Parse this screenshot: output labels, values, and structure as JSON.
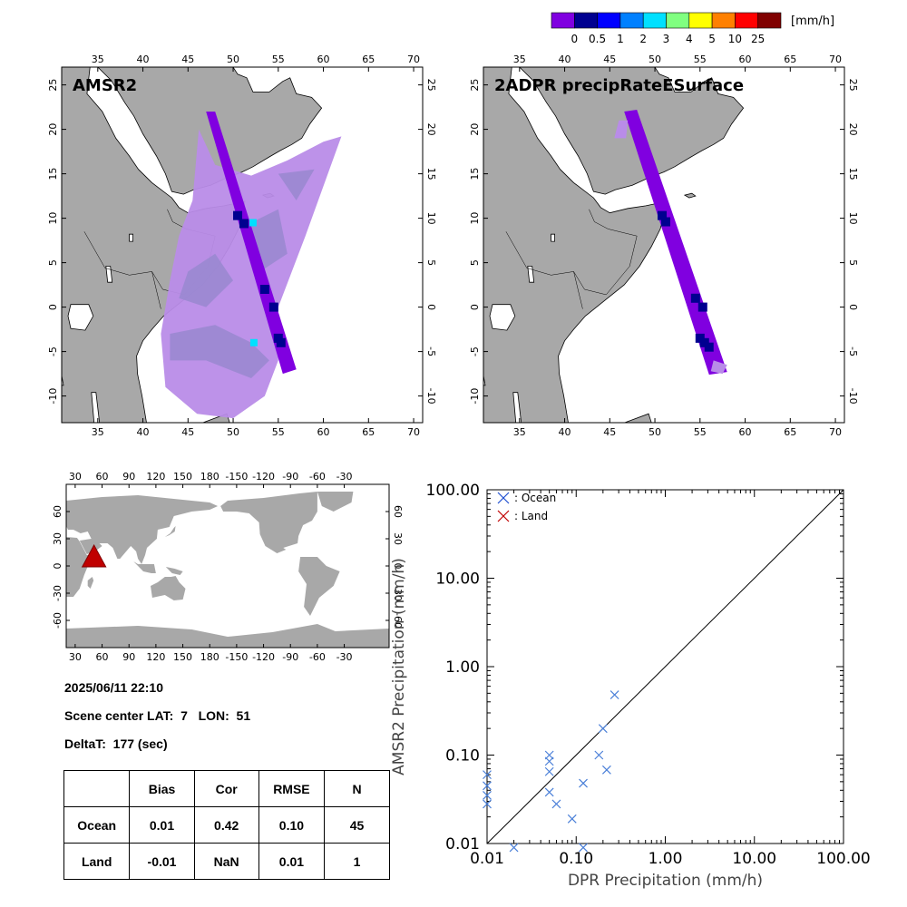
{
  "colorbar": {
    "unit": "[mm/h]",
    "labels": [
      "0",
      "0.5",
      "1",
      "2",
      "3",
      "4",
      "5",
      "10",
      "25"
    ],
    "colors": [
      "#8000e0",
      "#000090",
      "#0000ff",
      "#0080ff",
      "#00e0ff",
      "#80ff80",
      "#ffff00",
      "#ff8000",
      "#ff0000",
      "#800000"
    ]
  },
  "map_left": {
    "title": "AMSR2",
    "lon_ticks": [
      35,
      40,
      45,
      50,
      55,
      60,
      65,
      70
    ],
    "lat_ticks": [
      25,
      20,
      15,
      10,
      5,
      0,
      -5,
      -10
    ]
  },
  "map_right": {
    "title": "2ADPR precipRateESurface",
    "lon_ticks": [
      35,
      40,
      45,
      50,
      55,
      60,
      65,
      70
    ],
    "lat_ticks": [
      25,
      20,
      15,
      10,
      5,
      0,
      -5,
      -10
    ]
  },
  "world": {
    "lon_ticks": [
      "30",
      "60",
      "90",
      "120",
      "150",
      "180",
      "-150",
      "-120",
      "-90",
      "-60",
      "-30"
    ],
    "lat_ticks": [
      "60",
      "30",
      "0",
      "-30",
      "-60"
    ]
  },
  "info": {
    "datetime": "2025/06/11 22:10",
    "scene_center": "Scene center LAT:  7   LON:  51",
    "deltat": "DeltaT:  177 (sec)"
  },
  "stats": {
    "headers": [
      "Bias",
      "Cor",
      "RMSE",
      "N"
    ],
    "rows": [
      {
        "label": "Ocean",
        "values": [
          "0.01",
          "0.42",
          "0.10",
          "45"
        ]
      },
      {
        "label": "Land",
        "values": [
          "-0.01",
          "NaN",
          "0.01",
          "1"
        ]
      }
    ]
  },
  "chart_data": {
    "type": "scatter",
    "xlabel": "DPR Precipitation (mm/h)",
    "ylabel": "AMSR2 Precipitation (mm/h)",
    "xlim": [
      0.01,
      100
    ],
    "ylim": [
      0.01,
      100
    ],
    "xscale": "log",
    "yscale": "log",
    "tick_labels": [
      "0.01",
      "0.10",
      "1.00",
      "10.00",
      "100.00"
    ],
    "legend": [
      {
        "label": " : Ocean",
        "color": "#2050d0"
      },
      {
        "label": " : Land",
        "color": "#c00000"
      }
    ],
    "series": [
      {
        "name": "Ocean",
        "color": "#4a7fd8",
        "points": [
          [
            0.01,
            0.06
          ],
          [
            0.01,
            0.045
          ],
          [
            0.01,
            0.035
          ],
          [
            0.01,
            0.028
          ],
          [
            0.02,
            0.009
          ],
          [
            0.05,
            0.1
          ],
          [
            0.05,
            0.085
          ],
          [
            0.05,
            0.065
          ],
          [
            0.05,
            0.038
          ],
          [
            0.06,
            0.028
          ],
          [
            0.09,
            0.019
          ],
          [
            0.12,
            0.048
          ],
          [
            0.12,
            0.009
          ],
          [
            0.18,
            0.1
          ],
          [
            0.2,
            0.2
          ],
          [
            0.22,
            0.068
          ],
          [
            0.27,
            0.48
          ]
        ]
      }
    ]
  }
}
